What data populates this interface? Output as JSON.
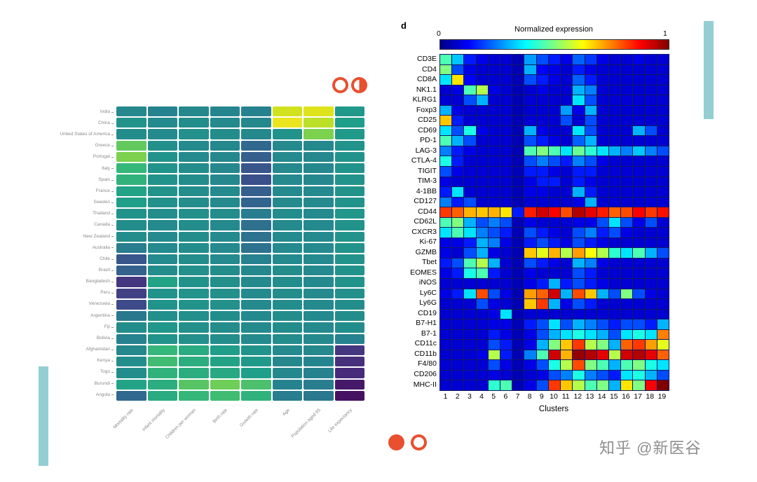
{
  "page": {
    "background": "#ffffff"
  },
  "decorations": {
    "teal_bar_color": "#93ced3",
    "accent_circle_color": "#e8502f"
  },
  "watermark": {
    "text": "知乎 @新医谷",
    "color": "#8f8f8f"
  },
  "chart_data": [
    {
      "id": "country-heatmap",
      "type": "heatmap",
      "colormap": "viridis",
      "vmin": 0,
      "vmax": 1,
      "rows": [
        "India",
        "China",
        "United States of America",
        "Greece",
        "Portugal",
        "Italy",
        "Spain",
        "France",
        "Sweden",
        "Thailand",
        "Canada",
        "New Zealand",
        "Australia",
        "Chile",
        "Brazil",
        "Bangladesh",
        "Peru",
        "Venezuela",
        "Argentina",
        "Fiji",
        "Bolivia",
        "Afghanistan",
        "Kenya",
        "Togo",
        "Burundi",
        "Angola"
      ],
      "columns": [
        "Mortality rate",
        "Infant mortality",
        "Children per woman",
        "Birth rate",
        "Growth rate",
        "Age",
        "Population aged 65",
        "Life expectancy"
      ],
      "values": [
        [
          0.42,
          0.4,
          0.42,
          0.41,
          0.4,
          0.88,
          0.92,
          0.48
        ],
        [
          0.46,
          0.43,
          0.44,
          0.43,
          0.42,
          0.95,
          0.82,
          0.5
        ],
        [
          0.44,
          0.43,
          0.45,
          0.44,
          0.42,
          0.46,
          0.72,
          0.48
        ],
        [
          0.68,
          0.45,
          0.43,
          0.42,
          0.3,
          0.43,
          0.42,
          0.46
        ],
        [
          0.72,
          0.46,
          0.43,
          0.42,
          0.27,
          0.43,
          0.42,
          0.46
        ],
        [
          0.6,
          0.46,
          0.44,
          0.42,
          0.24,
          0.43,
          0.42,
          0.46
        ],
        [
          0.58,
          0.46,
          0.44,
          0.42,
          0.22,
          0.43,
          0.42,
          0.46
        ],
        [
          0.52,
          0.46,
          0.44,
          0.43,
          0.27,
          0.43,
          0.43,
          0.46
        ],
        [
          0.5,
          0.45,
          0.44,
          0.43,
          0.29,
          0.43,
          0.43,
          0.46
        ],
        [
          0.46,
          0.44,
          0.45,
          0.44,
          0.38,
          0.44,
          0.43,
          0.47
        ],
        [
          0.44,
          0.43,
          0.44,
          0.43,
          0.33,
          0.43,
          0.43,
          0.46
        ],
        [
          0.44,
          0.43,
          0.44,
          0.43,
          0.34,
          0.43,
          0.43,
          0.46
        ],
        [
          0.38,
          0.43,
          0.44,
          0.43,
          0.34,
          0.43,
          0.43,
          0.46
        ],
        [
          0.24,
          0.43,
          0.44,
          0.43,
          0.4,
          0.43,
          0.43,
          0.46
        ],
        [
          0.28,
          0.44,
          0.45,
          0.44,
          0.42,
          0.44,
          0.43,
          0.46
        ],
        [
          0.14,
          0.52,
          0.46,
          0.45,
          0.43,
          0.44,
          0.43,
          0.46
        ],
        [
          0.17,
          0.46,
          0.46,
          0.45,
          0.43,
          0.44,
          0.43,
          0.45
        ],
        [
          0.2,
          0.46,
          0.46,
          0.45,
          0.43,
          0.44,
          0.43,
          0.44
        ],
        [
          0.36,
          0.45,
          0.45,
          0.44,
          0.43,
          0.44,
          0.43,
          0.44
        ],
        [
          0.44,
          0.47,
          0.45,
          0.44,
          0.43,
          0.44,
          0.43,
          0.44
        ],
        [
          0.4,
          0.46,
          0.45,
          0.44,
          0.43,
          0.44,
          0.43,
          0.4
        ],
        [
          0.42,
          0.6,
          0.55,
          0.5,
          0.46,
          0.43,
          0.42,
          0.14
        ],
        [
          0.44,
          0.62,
          0.56,
          0.52,
          0.48,
          0.42,
          0.41,
          0.12
        ],
        [
          0.44,
          0.58,
          0.56,
          0.54,
          0.5,
          0.42,
          0.4,
          0.11
        ],
        [
          0.52,
          0.56,
          0.66,
          0.7,
          0.64,
          0.4,
          0.38,
          0.06
        ],
        [
          0.3,
          0.55,
          0.6,
          0.62,
          0.58,
          0.38,
          0.36,
          0.04
        ]
      ]
    },
    {
      "id": "expression-heatmap",
      "type": "heatmap",
      "colormap": "jet",
      "panel_label": "d",
      "colorbar_title": "Normalized expression",
      "colorbar_min": "0",
      "colorbar_max": "1",
      "xlabel": "Clusters",
      "vmin": 0,
      "vmax": 1,
      "rows": [
        "CD3E",
        "CD4",
        "CD8A",
        "NK1.1",
        "KLRG1",
        "Foxp3",
        "CD25",
        "CD69",
        "PD-1",
        "LAG-3",
        "CTLA-4",
        "TIGIT",
        "TIM-3",
        "4-1BB",
        "CD127",
        "CD44",
        "CD62L",
        "CXCR3",
        "Ki-67",
        "GZMB",
        "Tbet",
        "EOMES",
        "iNOS",
        "Ly6C",
        "Ly6G",
        "CD19",
        "B7-H1",
        "B7-1",
        "CD11c",
        "CD11b",
        "F4/80",
        "CD206",
        "MHC-II"
      ],
      "columns": [
        "1",
        "2",
        "3",
        "4",
        "5",
        "6",
        "7",
        "8",
        "9",
        "10",
        "11",
        "12",
        "13",
        "14",
        "15",
        "16",
        "17",
        "18",
        "19"
      ],
      "values": [
        [
          0.45,
          0.32,
          0.15,
          0.1,
          0.08,
          0.08,
          0.05,
          0.28,
          0.2,
          0.15,
          0.1,
          0.22,
          0.18,
          0.1,
          0.08,
          0.08,
          0.1,
          0.08,
          0.08
        ],
        [
          0.5,
          0.2,
          0.1,
          0.08,
          0.08,
          0.08,
          0.05,
          0.3,
          0.12,
          0.1,
          0.08,
          0.15,
          0.1,
          0.08,
          0.08,
          0.08,
          0.08,
          0.08,
          0.08
        ],
        [
          0.35,
          0.65,
          0.12,
          0.08,
          0.08,
          0.08,
          0.05,
          0.2,
          0.15,
          0.1,
          0.08,
          0.22,
          0.15,
          0.08,
          0.08,
          0.08,
          0.08,
          0.08,
          0.08
        ],
        [
          0.08,
          0.1,
          0.45,
          0.55,
          0.1,
          0.08,
          0.05,
          0.08,
          0.1,
          0.08,
          0.08,
          0.3,
          0.25,
          0.08,
          0.08,
          0.08,
          0.08,
          0.08,
          0.08
        ],
        [
          0.08,
          0.08,
          0.2,
          0.3,
          0.08,
          0.08,
          0.05,
          0.08,
          0.08,
          0.08,
          0.08,
          0.35,
          0.2,
          0.08,
          0.08,
          0.08,
          0.08,
          0.08,
          0.08
        ],
        [
          0.3,
          0.1,
          0.08,
          0.08,
          0.08,
          0.08,
          0.05,
          0.08,
          0.08,
          0.08,
          0.28,
          0.1,
          0.3,
          0.08,
          0.08,
          0.08,
          0.08,
          0.08,
          0.08
        ],
        [
          0.68,
          0.15,
          0.08,
          0.08,
          0.08,
          0.08,
          0.05,
          0.08,
          0.08,
          0.08,
          0.2,
          0.08,
          0.2,
          0.08,
          0.08,
          0.08,
          0.08,
          0.08,
          0.08
        ],
        [
          0.35,
          0.2,
          0.4,
          0.1,
          0.08,
          0.08,
          0.05,
          0.3,
          0.1,
          0.08,
          0.08,
          0.35,
          0.2,
          0.08,
          0.08,
          0.08,
          0.3,
          0.2,
          0.08
        ],
        [
          0.45,
          0.3,
          0.2,
          0.08,
          0.08,
          0.08,
          0.05,
          0.2,
          0.15,
          0.1,
          0.08,
          0.22,
          0.3,
          0.08,
          0.08,
          0.08,
          0.08,
          0.08,
          0.08
        ],
        [
          0.25,
          0.15,
          0.1,
          0.08,
          0.08,
          0.08,
          0.05,
          0.45,
          0.5,
          0.45,
          0.35,
          0.48,
          0.42,
          0.35,
          0.3,
          0.25,
          0.32,
          0.25,
          0.2
        ],
        [
          0.4,
          0.15,
          0.08,
          0.08,
          0.08,
          0.08,
          0.05,
          0.2,
          0.25,
          0.2,
          0.15,
          0.25,
          0.2,
          0.1,
          0.08,
          0.08,
          0.08,
          0.08,
          0.08
        ],
        [
          0.2,
          0.1,
          0.08,
          0.08,
          0.08,
          0.08,
          0.05,
          0.15,
          0.15,
          0.1,
          0.08,
          0.15,
          0.15,
          0.08,
          0.08,
          0.08,
          0.08,
          0.08,
          0.08
        ],
        [
          0.1,
          0.08,
          0.08,
          0.08,
          0.08,
          0.08,
          0.05,
          0.1,
          0.15,
          0.15,
          0.08,
          0.15,
          0.1,
          0.08,
          0.08,
          0.08,
          0.08,
          0.08,
          0.08
        ],
        [
          0.15,
          0.35,
          0.08,
          0.08,
          0.08,
          0.08,
          0.05,
          0.1,
          0.1,
          0.08,
          0.08,
          0.3,
          0.15,
          0.08,
          0.08,
          0.08,
          0.08,
          0.08,
          0.08
        ],
        [
          0.25,
          0.15,
          0.2,
          0.08,
          0.08,
          0.08,
          0.05,
          0.08,
          0.08,
          0.08,
          0.08,
          0.1,
          0.3,
          0.08,
          0.08,
          0.08,
          0.08,
          0.08,
          0.08
        ],
        [
          0.82,
          0.78,
          0.7,
          0.68,
          0.7,
          0.65,
          0.15,
          0.85,
          0.92,
          0.88,
          0.8,
          0.95,
          0.9,
          0.85,
          0.78,
          0.8,
          0.88,
          0.82,
          0.86
        ],
        [
          0.45,
          0.5,
          0.3,
          0.2,
          0.25,
          0.2,
          0.05,
          0.1,
          0.08,
          0.08,
          0.08,
          0.1,
          0.1,
          0.2,
          0.35,
          0.2,
          0.1,
          0.2,
          0.08
        ],
        [
          0.35,
          0.45,
          0.35,
          0.25,
          0.2,
          0.15,
          0.05,
          0.2,
          0.15,
          0.1,
          0.08,
          0.2,
          0.25,
          0.15,
          0.2,
          0.1,
          0.08,
          0.08,
          0.08
        ],
        [
          0.1,
          0.1,
          0.15,
          0.3,
          0.25,
          0.1,
          0.05,
          0.15,
          0.2,
          0.15,
          0.1,
          0.2,
          0.15,
          0.1,
          0.08,
          0.08,
          0.08,
          0.08,
          0.08
        ],
        [
          0.1,
          0.08,
          0.2,
          0.3,
          0.1,
          0.08,
          0.05,
          0.68,
          0.6,
          0.7,
          0.55,
          0.72,
          0.62,
          0.55,
          0.42,
          0.35,
          0.45,
          0.3,
          0.2
        ],
        [
          0.15,
          0.2,
          0.45,
          0.55,
          0.3,
          0.08,
          0.05,
          0.2,
          0.15,
          0.1,
          0.08,
          0.3,
          0.25,
          0.1,
          0.08,
          0.08,
          0.08,
          0.08,
          0.08
        ],
        [
          0.1,
          0.15,
          0.4,
          0.45,
          0.15,
          0.08,
          0.05,
          0.1,
          0.08,
          0.08,
          0.08,
          0.2,
          0.15,
          0.08,
          0.08,
          0.08,
          0.08,
          0.08,
          0.08
        ],
        [
          0.08,
          0.08,
          0.08,
          0.08,
          0.08,
          0.08,
          0.05,
          0.1,
          0.15,
          0.3,
          0.15,
          0.2,
          0.15,
          0.1,
          0.08,
          0.08,
          0.08,
          0.08,
          0.08
        ],
        [
          0.1,
          0.15,
          0.35,
          0.8,
          0.2,
          0.1,
          0.05,
          0.72,
          0.78,
          0.92,
          0.3,
          0.8,
          0.68,
          0.3,
          0.2,
          0.5,
          0.2,
          0.1,
          0.08
        ],
        [
          0.08,
          0.08,
          0.08,
          0.2,
          0.1,
          0.08,
          0.05,
          0.68,
          0.82,
          0.3,
          0.1,
          0.2,
          0.15,
          0.08,
          0.08,
          0.08,
          0.08,
          0.08,
          0.08
        ],
        [
          0.08,
          0.08,
          0.08,
          0.08,
          0.1,
          0.35,
          0.05,
          0.08,
          0.08,
          0.08,
          0.08,
          0.08,
          0.08,
          0.08,
          0.08,
          0.08,
          0.08,
          0.08,
          0.08
        ],
        [
          0.08,
          0.08,
          0.08,
          0.08,
          0.1,
          0.1,
          0.05,
          0.15,
          0.2,
          0.35,
          0.2,
          0.3,
          0.25,
          0.2,
          0.15,
          0.2,
          0.2,
          0.15,
          0.3
        ],
        [
          0.08,
          0.08,
          0.08,
          0.08,
          0.15,
          0.1,
          0.05,
          0.1,
          0.2,
          0.3,
          0.35,
          0.4,
          0.35,
          0.3,
          0.2,
          0.35,
          0.4,
          0.35,
          0.75
        ],
        [
          0.08,
          0.08,
          0.08,
          0.08,
          0.2,
          0.15,
          0.05,
          0.1,
          0.3,
          0.5,
          0.68,
          0.82,
          0.55,
          0.5,
          0.3,
          0.78,
          0.82,
          0.72,
          0.6
        ],
        [
          0.08,
          0.08,
          0.08,
          0.1,
          0.55,
          0.15,
          0.05,
          0.25,
          0.45,
          0.92,
          0.7,
          0.98,
          0.95,
          0.9,
          0.55,
          0.92,
          0.95,
          0.9,
          0.78
        ],
        [
          0.08,
          0.08,
          0.08,
          0.08,
          0.2,
          0.1,
          0.05,
          0.1,
          0.2,
          0.4,
          0.55,
          0.8,
          0.5,
          0.45,
          0.3,
          0.45,
          0.5,
          0.4,
          0.35
        ],
        [
          0.08,
          0.08,
          0.08,
          0.08,
          0.1,
          0.08,
          0.05,
          0.08,
          0.1,
          0.2,
          0.25,
          0.4,
          0.25,
          0.2,
          0.15,
          0.35,
          0.4,
          0.3,
          0.2
        ],
        [
          0.08,
          0.08,
          0.08,
          0.08,
          0.42,
          0.45,
          0.05,
          0.1,
          0.2,
          0.82,
          0.68,
          0.55,
          0.45,
          0.5,
          0.3,
          0.65,
          0.5,
          0.88,
          1.0
        ]
      ]
    }
  ]
}
